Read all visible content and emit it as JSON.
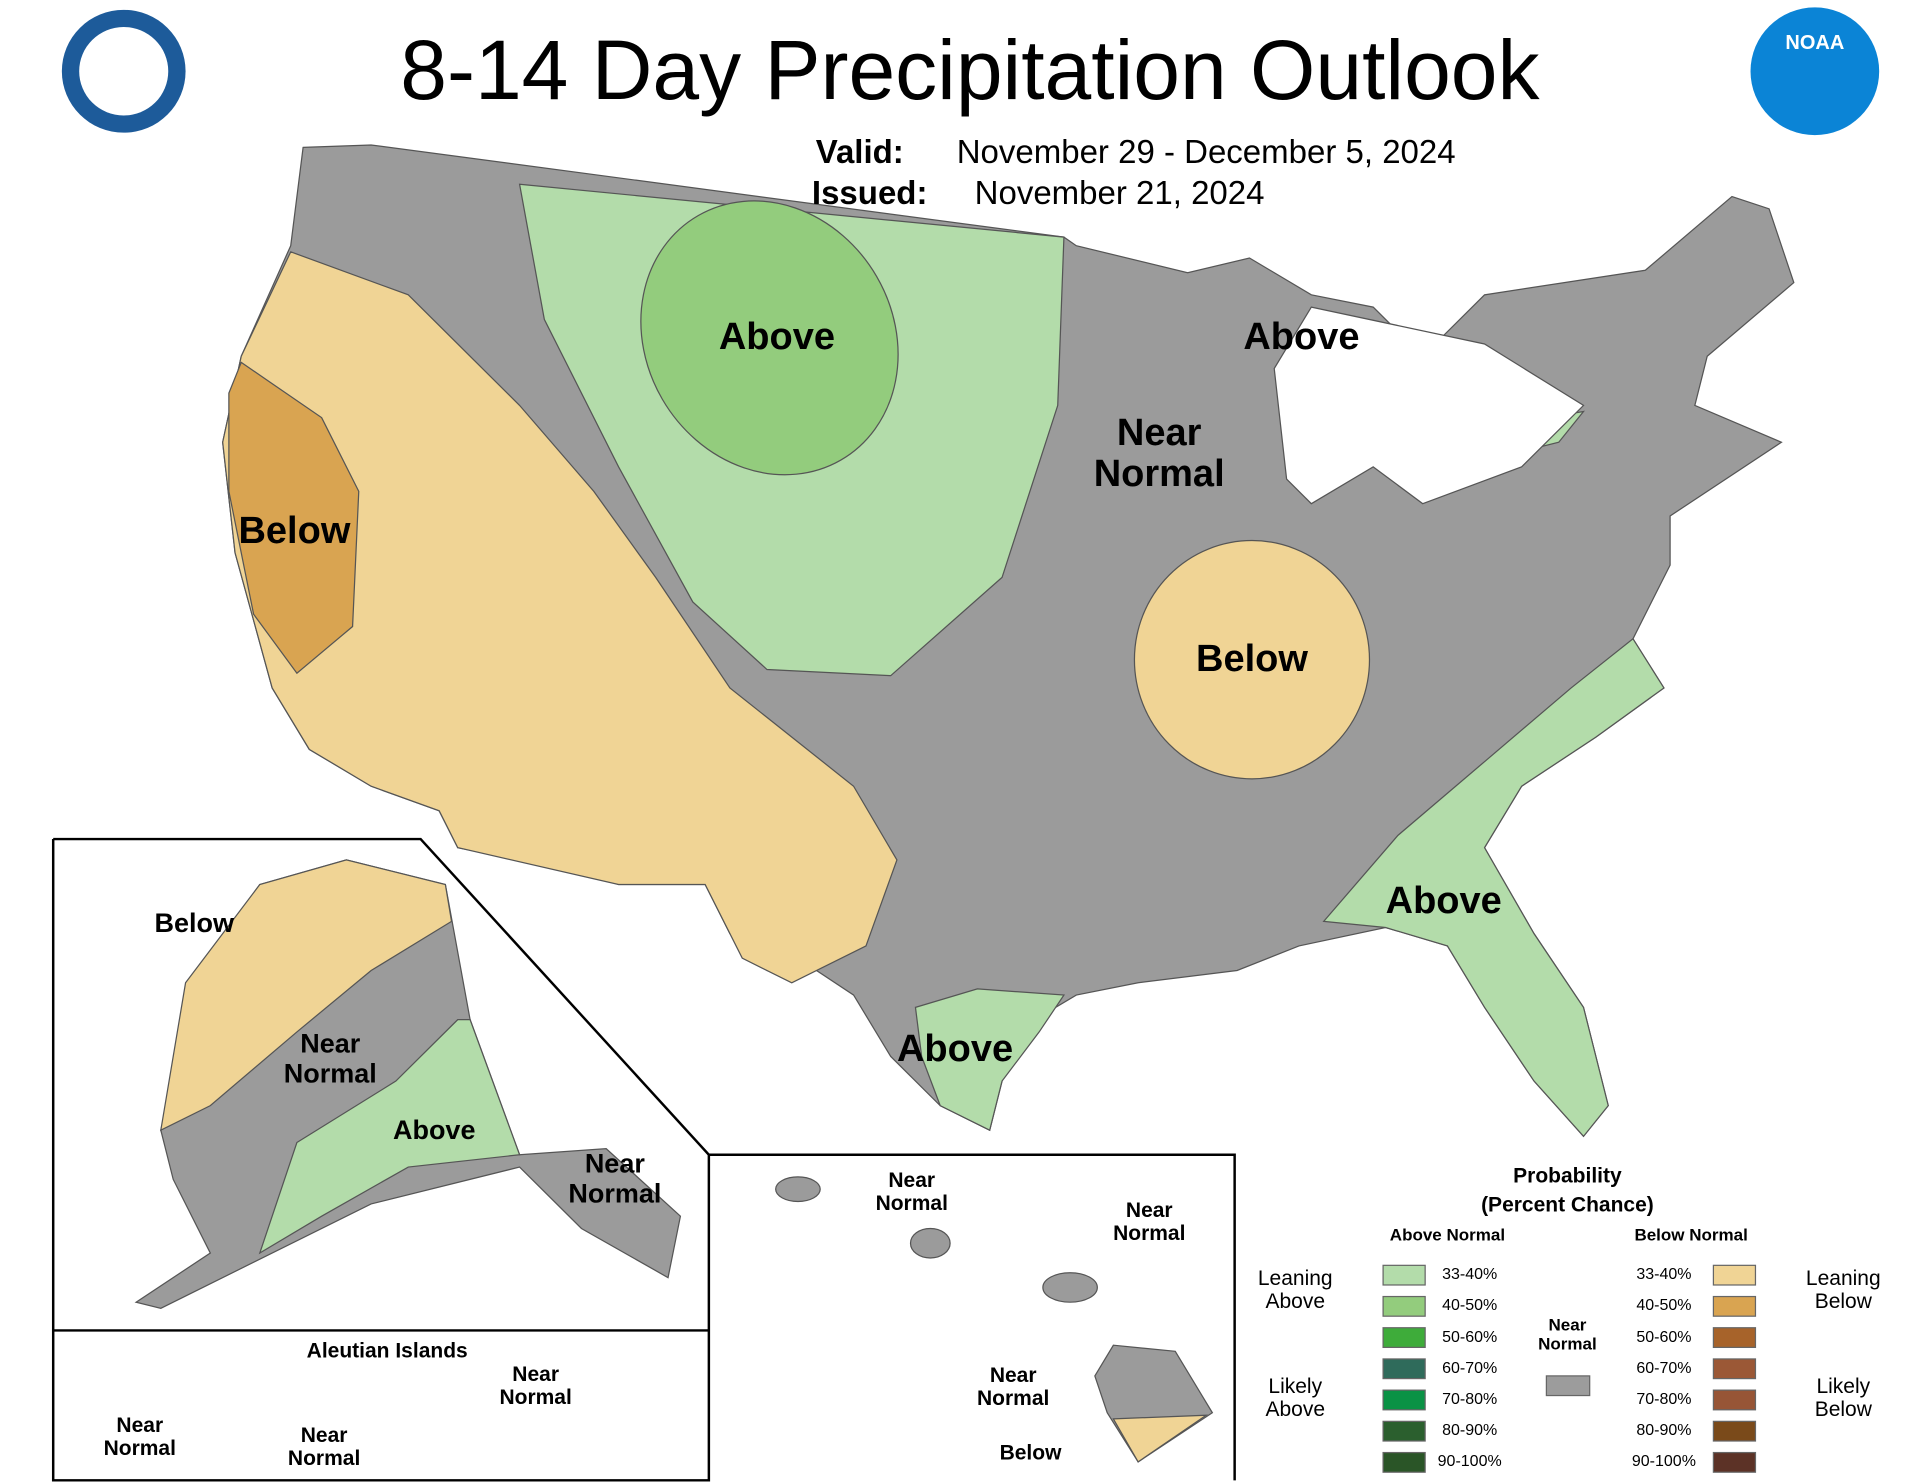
{
  "header": {
    "title": "8-14 Day Precipitation Outlook",
    "valid_label": "Valid:",
    "valid": "November 29 - December 5, 2024",
    "issued_label": "Issued:",
    "issued": "November 21, 2024",
    "logo_text": "NOAA"
  },
  "map_labels": [
    "Above",
    "Above",
    "Near Normal",
    "Below",
    "Below",
    "Above",
    "Above"
  ],
  "alaska_labels": [
    "Below",
    "Near Normal",
    "Above",
    "Near Normal"
  ],
  "aleutian": {
    "title": "Aleutian Islands",
    "labels": [
      "Near Normal",
      "Near Normal",
      "Near Normal"
    ]
  },
  "hawaii_labels": [
    "Near Normal",
    "Near Normal",
    "Near Normal",
    "Below"
  ],
  "legend": {
    "title": "Probability",
    "subtitle": "(Percent Chance)",
    "above_header": "Above Normal",
    "below_header": "Below Normal",
    "near_normal": "Near Normal",
    "near_color": "#9c9c9c",
    "leaning_above": "Leaning Above",
    "likely_above": "Likely Above",
    "leaning_below": "Leaning Below",
    "likely_below": "Likely Below",
    "above": [
      {
        "label": "33-40%",
        "color": "#b3dcaa"
      },
      {
        "label": "40-50%",
        "color": "#93cc7d"
      },
      {
        "label": "50-60%",
        "color": "#3eac3a"
      },
      {
        "label": "60-70%",
        "color": "#2f6b5b"
      },
      {
        "label": "70-80%",
        "color": "#0a9245"
      },
      {
        "label": "80-90%",
        "color": "#2b5f2e"
      },
      {
        "label": "90-100%",
        "color": "#2a5527"
      }
    ],
    "below": [
      {
        "label": "33-40%",
        "color": "#f0d495"
      },
      {
        "label": "40-50%",
        "color": "#d9a451"
      },
      {
        "label": "50-60%",
        "color": "#a7632a"
      },
      {
        "label": "60-70%",
        "color": "#9b5836"
      },
      {
        "label": "70-80%",
        "color": "#975536"
      },
      {
        "label": "80-90%",
        "color": "#7a4a1a"
      },
      {
        "label": "90-100%",
        "color": "#5c3226"
      }
    ]
  }
}
